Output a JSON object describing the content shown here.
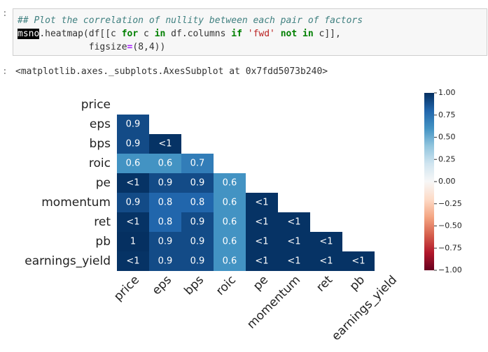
{
  "prompts": {
    "input": ":",
    "output": ":"
  },
  "code": {
    "lines": [
      [
        "## Plot the correlation of nullity between each pair of factors"
      ],
      [
        "msno",
        ".heatmap(df[[c ",
        "for",
        " c ",
        "in",
        " df.columns ",
        "if",
        " ",
        "'fwd'",
        " ",
        "not",
        " ",
        "in",
        " c]],"
      ],
      [
        "             figsize",
        "=",
        "(8,4))"
      ]
    ]
  },
  "output": "<matplotlib.axes._subplots.AxesSubplot at 0x7fdd5073b240>",
  "chart_data": {
    "type": "heatmap",
    "categories": [
      "price",
      "eps",
      "bps",
      "roic",
      "pe",
      "momentum",
      "ret",
      "pb",
      "earnings_yield"
    ],
    "values": [
      [],
      [
        0.9
      ],
      [
        0.9,
        0.99
      ],
      [
        0.6,
        0.6,
        0.7
      ],
      [
        0.99,
        0.9,
        0.9,
        0.6
      ],
      [
        0.9,
        0.8,
        0.8,
        0.6,
        0.99
      ],
      [
        0.99,
        0.8,
        0.9,
        0.6,
        0.99,
        0.99
      ],
      [
        1,
        0.9,
        0.9,
        0.6,
        0.99,
        0.99,
        0.99
      ],
      [
        0.99,
        0.9,
        0.9,
        0.6,
        0.99,
        0.99,
        0.99,
        0.99
      ]
    ],
    "value_labels": [
      [],
      [
        "0.9"
      ],
      [
        "0.9",
        "<1"
      ],
      [
        "0.6",
        "0.6",
        "0.7"
      ],
      [
        "<1",
        "0.9",
        "0.9",
        "0.6"
      ],
      [
        "0.9",
        "0.8",
        "0.8",
        "0.6",
        "<1"
      ],
      [
        "<1",
        "0.8",
        "0.9",
        "0.6",
        "<1",
        "<1"
      ],
      [
        "1",
        "0.9",
        "0.9",
        "0.6",
        "<1",
        "<1",
        "<1"
      ],
      [
        "<1",
        "0.9",
        "0.9",
        "0.6",
        "<1",
        "<1",
        "<1",
        "<1"
      ]
    ],
    "colormap": [
      "#67001f",
      "#b2182b",
      "#d6604d",
      "#f4a582",
      "#fddbc7",
      "#f7f7f7",
      "#d1e5f0",
      "#92c5de",
      "#4393c3",
      "#2166ac",
      "#053061"
    ],
    "clim": [
      -1,
      1
    ],
    "cticks": [
      {
        "value": 1,
        "label": "1.00"
      },
      {
        "value": 0.75,
        "label": "0.75"
      },
      {
        "value": 0.5,
        "label": "0.50"
      },
      {
        "value": 0.25,
        "label": "0.25"
      },
      {
        "value": 0,
        "label": "0.00"
      },
      {
        "value": -0.25,
        "label": "−0.25"
      },
      {
        "value": -0.5,
        "label": "−0.50"
      },
      {
        "value": -0.75,
        "label": "−0.75"
      },
      {
        "value": -1,
        "label": "−1.00"
      }
    ]
  }
}
